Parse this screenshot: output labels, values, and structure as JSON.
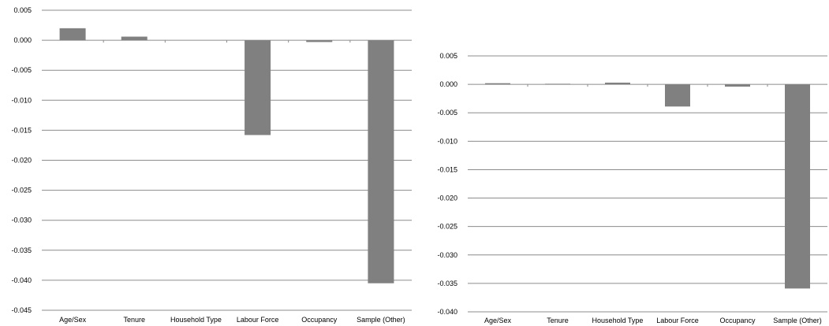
{
  "chart_data": [
    {
      "type": "bar",
      "categories": [
        "Age/Sex",
        "Tenure",
        "Household Type",
        "Labour Force",
        "Occupancy",
        "Sample (Other)"
      ],
      "values": [
        0.002,
        0.0006,
        0.0,
        -0.0158,
        -0.0003,
        -0.0405
      ],
      "yticks": [
        "0.005",
        "0.000",
        "-0.005",
        "-0.010",
        "-0.015",
        "-0.020",
        "-0.025",
        "-0.030",
        "-0.035",
        "-0.040",
        "-0.045"
      ],
      "ylim": [
        -0.045,
        0.005
      ],
      "grid": true,
      "bar_color": "#808080"
    },
    {
      "type": "bar",
      "categories": [
        "Age/Sex",
        "Tenure",
        "Household Type",
        "Labour Force",
        "Occupancy",
        "Sample (Other)"
      ],
      "values": [
        0.0002,
        0.0001,
        0.0003,
        -0.0039,
        -0.0004,
        -0.0359
      ],
      "yticks": [
        "0.005",
        "0.000",
        "-0.005",
        "-0.010",
        "-0.015",
        "-0.020",
        "-0.025",
        "-0.030",
        "-0.035",
        "-0.040"
      ],
      "ylim": [
        -0.04,
        0.005
      ],
      "grid": true,
      "bar_color": "#808080"
    }
  ]
}
